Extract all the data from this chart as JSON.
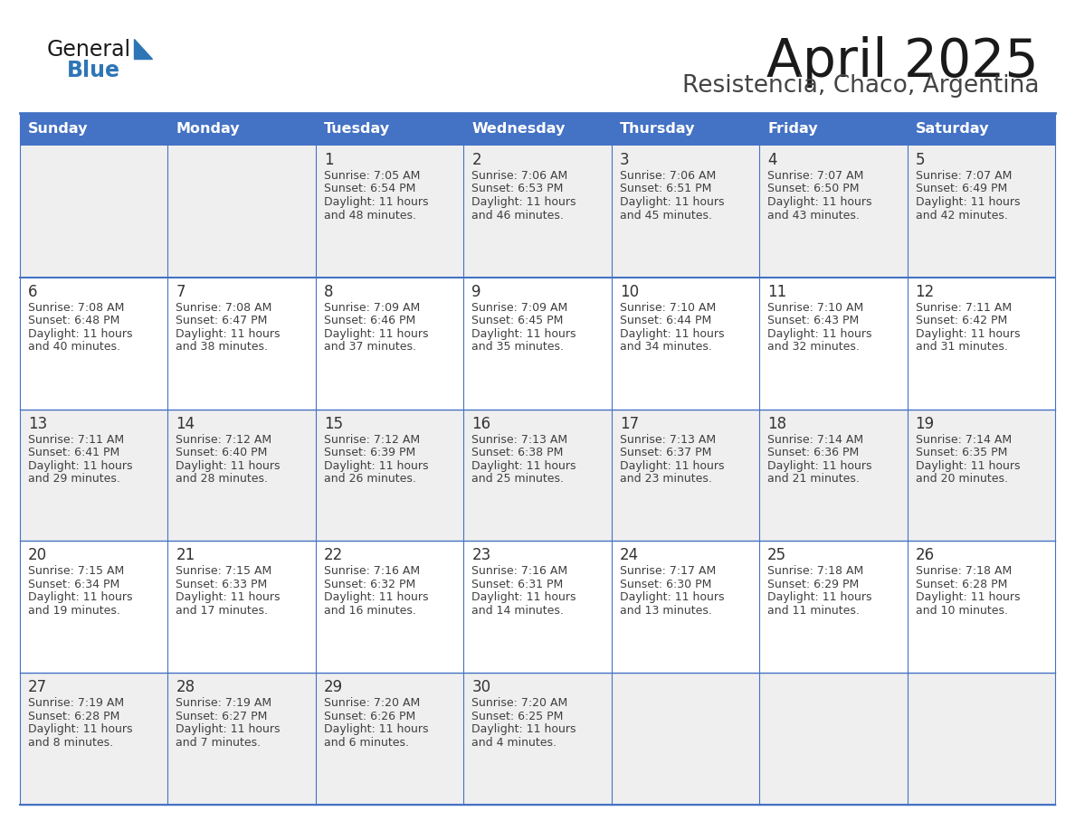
{
  "title": "April 2025",
  "subtitle": "Resistencia, Chaco, Argentina",
  "days_of_week": [
    "Sunday",
    "Monday",
    "Tuesday",
    "Wednesday",
    "Thursday",
    "Friday",
    "Saturday"
  ],
  "header_bg": "#4472C4",
  "header_text_color": "#FFFFFF",
  "cell_bg_white": "#FFFFFF",
  "cell_bg_gray": "#EFEFEF",
  "cell_border_color": "#4472C4",
  "cell_text_color": "#404040",
  "day_num_color": "#333333",
  "title_color": "#1a1a1a",
  "subtitle_color": "#444444",
  "logo_general_color": "#1a1a1a",
  "logo_blue_color": "#2E75B6",
  "weeks": [
    [
      null,
      null,
      {
        "day": "1",
        "sunrise": "7:05 AM",
        "sunset": "6:54 PM",
        "dl1": "Daylight: 11 hours",
        "dl2": "and 48 minutes."
      },
      {
        "day": "2",
        "sunrise": "7:06 AM",
        "sunset": "6:53 PM",
        "dl1": "Daylight: 11 hours",
        "dl2": "and 46 minutes."
      },
      {
        "day": "3",
        "sunrise": "7:06 AM",
        "sunset": "6:51 PM",
        "dl1": "Daylight: 11 hours",
        "dl2": "and 45 minutes."
      },
      {
        "day": "4",
        "sunrise": "7:07 AM",
        "sunset": "6:50 PM",
        "dl1": "Daylight: 11 hours",
        "dl2": "and 43 minutes."
      },
      {
        "day": "5",
        "sunrise": "7:07 AM",
        "sunset": "6:49 PM",
        "dl1": "Daylight: 11 hours",
        "dl2": "and 42 minutes."
      }
    ],
    [
      {
        "day": "6",
        "sunrise": "7:08 AM",
        "sunset": "6:48 PM",
        "dl1": "Daylight: 11 hours",
        "dl2": "and 40 minutes."
      },
      {
        "day": "7",
        "sunrise": "7:08 AM",
        "sunset": "6:47 PM",
        "dl1": "Daylight: 11 hours",
        "dl2": "and 38 minutes."
      },
      {
        "day": "8",
        "sunrise": "7:09 AM",
        "sunset": "6:46 PM",
        "dl1": "Daylight: 11 hours",
        "dl2": "and 37 minutes."
      },
      {
        "day": "9",
        "sunrise": "7:09 AM",
        "sunset": "6:45 PM",
        "dl1": "Daylight: 11 hours",
        "dl2": "and 35 minutes."
      },
      {
        "day": "10",
        "sunrise": "7:10 AM",
        "sunset": "6:44 PM",
        "dl1": "Daylight: 11 hours",
        "dl2": "and 34 minutes."
      },
      {
        "day": "11",
        "sunrise": "7:10 AM",
        "sunset": "6:43 PM",
        "dl1": "Daylight: 11 hours",
        "dl2": "and 32 minutes."
      },
      {
        "day": "12",
        "sunrise": "7:11 AM",
        "sunset": "6:42 PM",
        "dl1": "Daylight: 11 hours",
        "dl2": "and 31 minutes."
      }
    ],
    [
      {
        "day": "13",
        "sunrise": "7:11 AM",
        "sunset": "6:41 PM",
        "dl1": "Daylight: 11 hours",
        "dl2": "and 29 minutes."
      },
      {
        "day": "14",
        "sunrise": "7:12 AM",
        "sunset": "6:40 PM",
        "dl1": "Daylight: 11 hours",
        "dl2": "and 28 minutes."
      },
      {
        "day": "15",
        "sunrise": "7:12 AM",
        "sunset": "6:39 PM",
        "dl1": "Daylight: 11 hours",
        "dl2": "and 26 minutes."
      },
      {
        "day": "16",
        "sunrise": "7:13 AM",
        "sunset": "6:38 PM",
        "dl1": "Daylight: 11 hours",
        "dl2": "and 25 minutes."
      },
      {
        "day": "17",
        "sunrise": "7:13 AM",
        "sunset": "6:37 PM",
        "dl1": "Daylight: 11 hours",
        "dl2": "and 23 minutes."
      },
      {
        "day": "18",
        "sunrise": "7:14 AM",
        "sunset": "6:36 PM",
        "dl1": "Daylight: 11 hours",
        "dl2": "and 21 minutes."
      },
      {
        "day": "19",
        "sunrise": "7:14 AM",
        "sunset": "6:35 PM",
        "dl1": "Daylight: 11 hours",
        "dl2": "and 20 minutes."
      }
    ],
    [
      {
        "day": "20",
        "sunrise": "7:15 AM",
        "sunset": "6:34 PM",
        "dl1": "Daylight: 11 hours",
        "dl2": "and 19 minutes."
      },
      {
        "day": "21",
        "sunrise": "7:15 AM",
        "sunset": "6:33 PM",
        "dl1": "Daylight: 11 hours",
        "dl2": "and 17 minutes."
      },
      {
        "day": "22",
        "sunrise": "7:16 AM",
        "sunset": "6:32 PM",
        "dl1": "Daylight: 11 hours",
        "dl2": "and 16 minutes."
      },
      {
        "day": "23",
        "sunrise": "7:16 AM",
        "sunset": "6:31 PM",
        "dl1": "Daylight: 11 hours",
        "dl2": "and 14 minutes."
      },
      {
        "day": "24",
        "sunrise": "7:17 AM",
        "sunset": "6:30 PM",
        "dl1": "Daylight: 11 hours",
        "dl2": "and 13 minutes."
      },
      {
        "day": "25",
        "sunrise": "7:18 AM",
        "sunset": "6:29 PM",
        "dl1": "Daylight: 11 hours",
        "dl2": "and 11 minutes."
      },
      {
        "day": "26",
        "sunrise": "7:18 AM",
        "sunset": "6:28 PM",
        "dl1": "Daylight: 11 hours",
        "dl2": "and 10 minutes."
      }
    ],
    [
      {
        "day": "27",
        "sunrise": "7:19 AM",
        "sunset": "6:28 PM",
        "dl1": "Daylight: 11 hours",
        "dl2": "and 8 minutes."
      },
      {
        "day": "28",
        "sunrise": "7:19 AM",
        "sunset": "6:27 PM",
        "dl1": "Daylight: 11 hours",
        "dl2": "and 7 minutes."
      },
      {
        "day": "29",
        "sunrise": "7:20 AM",
        "sunset": "6:26 PM",
        "dl1": "Daylight: 11 hours",
        "dl2": "and 6 minutes."
      },
      {
        "day": "30",
        "sunrise": "7:20 AM",
        "sunset": "6:25 PM",
        "dl1": "Daylight: 11 hours",
        "dl2": "and 4 minutes."
      },
      null,
      null,
      null
    ]
  ],
  "figsize": [
    11.88,
    9.18
  ],
  "dpi": 100
}
